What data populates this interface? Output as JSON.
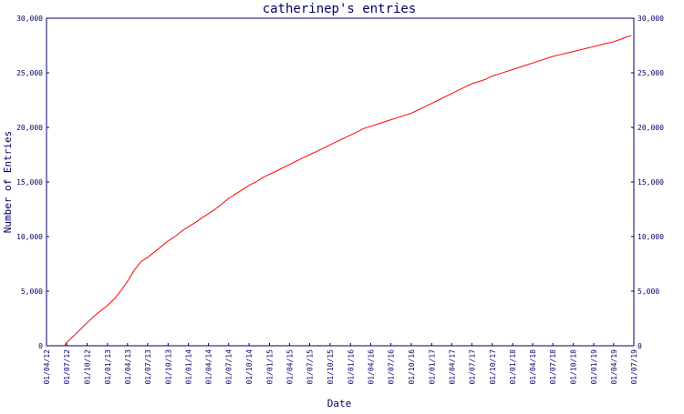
{
  "chart_data": {
    "type": "line",
    "title": "catherinep's entries",
    "xlabel": "Date",
    "ylabel": "Number of Entries",
    "ylim": [
      0,
      30000
    ],
    "y_ticks": [
      0,
      5000,
      10000,
      15000,
      20000,
      25000,
      30000
    ],
    "y_tick_labels": [
      "0",
      "5,000",
      "10,000",
      "15,000",
      "20,000",
      "25,000",
      "30,000"
    ],
    "x_tick_labels": [
      "01/04/12",
      "01/07/12",
      "01/10/12",
      "01/01/13",
      "01/04/13",
      "01/07/13",
      "01/10/13",
      "01/01/14",
      "01/04/14",
      "01/07/14",
      "01/10/14",
      "01/01/15",
      "01/04/15",
      "01/07/15",
      "01/10/15",
      "01/01/16",
      "01/04/16",
      "01/07/16",
      "01/10/16",
      "01/01/17",
      "01/04/17",
      "01/07/17",
      "01/10/17",
      "01/01/18",
      "01/04/18",
      "01/07/18",
      "01/10/18",
      "01/01/19",
      "01/04/19",
      "01/07/19"
    ],
    "grid": false,
    "line_color": "#ff0000",
    "axis_color": "#000066",
    "series": [
      {
        "x": [
          "2012-06-20",
          "2012-07-01",
          "2012-08-01",
          "2012-09-01",
          "2012-10-01",
          "2012-11-01",
          "2012-12-01",
          "2013-01-01",
          "2013-02-01",
          "2013-03-01",
          "2013-04-01",
          "2013-05-01",
          "2013-06-01",
          "2013-07-01",
          "2013-08-01",
          "2013-09-01",
          "2013-10-01",
          "2013-11-01",
          "2013-12-01",
          "2014-01-01",
          "2014-02-01",
          "2014-03-01",
          "2014-04-01",
          "2014-05-01",
          "2014-06-01",
          "2014-07-01",
          "2014-08-01",
          "2014-09-01",
          "2014-10-01",
          "2014-11-01",
          "2014-12-01",
          "2015-01-01",
          "2015-02-01",
          "2015-03-01",
          "2015-04-01",
          "2015-05-01",
          "2015-06-01",
          "2015-07-01",
          "2015-08-01",
          "2015-09-01",
          "2015-10-01",
          "2015-11-01",
          "2015-12-01",
          "2016-01-01",
          "2016-02-01",
          "2016-03-01",
          "2016-04-01",
          "2016-05-01",
          "2016-06-01",
          "2016-07-01",
          "2016-08-01",
          "2016-09-01",
          "2016-10-01",
          "2016-11-01",
          "2016-12-01",
          "2017-01-01",
          "2017-02-01",
          "2017-03-01",
          "2017-04-01",
          "2017-05-01",
          "2017-06-01",
          "2017-07-01",
          "2017-08-01",
          "2017-09-01",
          "2017-10-01",
          "2017-11-01",
          "2017-12-01",
          "2018-01-01",
          "2018-02-01",
          "2018-03-01",
          "2018-04-01",
          "2018-05-01",
          "2018-06-01",
          "2018-07-01",
          "2018-08-01",
          "2018-09-01",
          "2018-10-01",
          "2018-11-01",
          "2018-12-01",
          "2019-01-01",
          "2019-02-01",
          "2019-03-01",
          "2019-04-01",
          "2019-05-01",
          "2019-06-01",
          "2019-06-20"
        ],
        "y": [
          0,
          300,
          900,
          1500,
          2100,
          2700,
          3200,
          3700,
          4300,
          5000,
          5900,
          6900,
          7700,
          8100,
          8600,
          9100,
          9600,
          10000,
          10500,
          10900,
          11300,
          11700,
          12100,
          12500,
          13000,
          13500,
          13900,
          14300,
          14700,
          15000,
          15400,
          15700,
          16000,
          16300,
          16600,
          16900,
          17200,
          17500,
          17800,
          18100,
          18400,
          18700,
          19000,
          19300,
          19600,
          19900,
          20100,
          20300,
          20500,
          20700,
          20900,
          21100,
          21300,
          21600,
          21900,
          22200,
          22500,
          22800,
          23100,
          23400,
          23700,
          24000,
          24200,
          24400,
          24700,
          24900,
          25100,
          25300,
          25500,
          25700,
          25900,
          26100,
          26300,
          26500,
          26650,
          26800,
          26950,
          27100,
          27250,
          27400,
          27550,
          27700,
          27850,
          28050,
          28300,
          28400
        ]
      }
    ]
  }
}
